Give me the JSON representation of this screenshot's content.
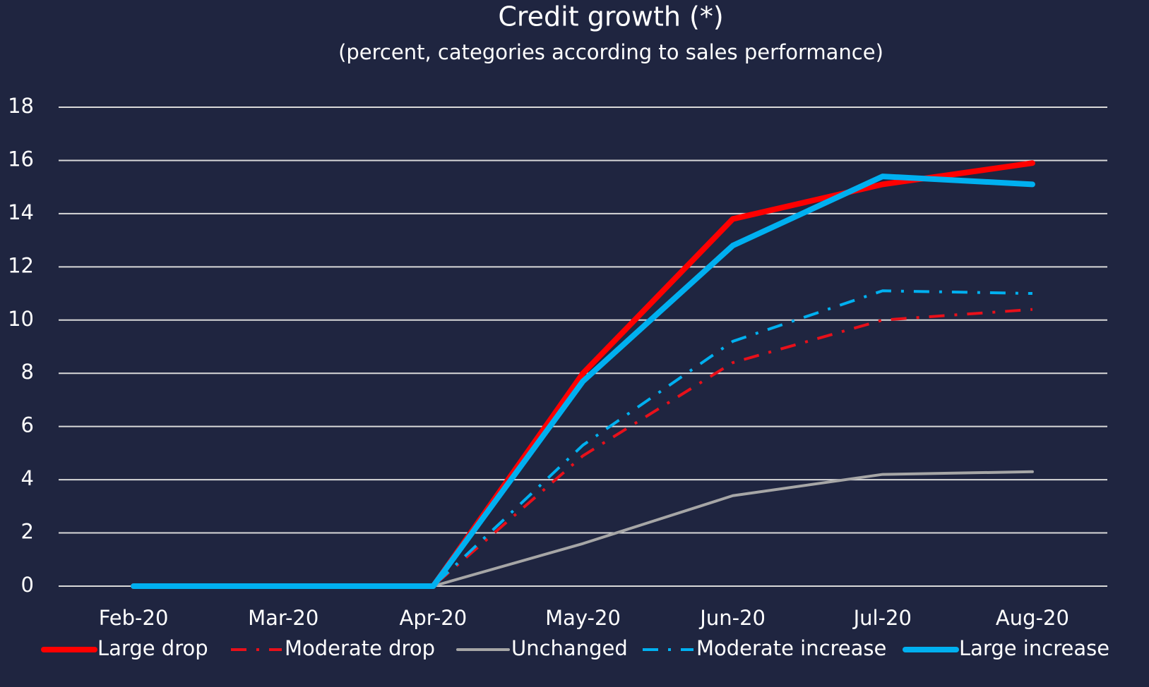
{
  "chart_data": {
    "type": "line",
    "title": "Credit growth (*)",
    "subtitle": "(percent, categories according to sales performance)",
    "categories": [
      "Feb-20",
      "Mar-20",
      "Apr-20",
      "May-20",
      "Jun-20",
      "Jul-20",
      "Aug-20"
    ],
    "series": [
      {
        "name": "Large drop",
        "color": "#ff0000",
        "style": "solid",
        "line_width": 8,
        "values": [
          0,
          0,
          0,
          8.0,
          13.8,
          15.1,
          15.9
        ]
      },
      {
        "name": "Moderate drop",
        "color": "#e8101a",
        "style": "dashdot",
        "line_width": 4,
        "values": [
          0,
          0,
          0,
          4.9,
          8.4,
          10.0,
          10.4
        ]
      },
      {
        "name": "Unchanged",
        "color": "#a6a6a6",
        "style": "solid",
        "line_width": 4,
        "values": [
          0,
          0,
          0,
          1.6,
          3.4,
          4.2,
          4.3
        ]
      },
      {
        "name": "Moderate increase",
        "color": "#00b0f0",
        "style": "dashdot",
        "line_width": 4,
        "values": [
          0,
          0,
          0,
          5.3,
          9.2,
          11.1,
          11.0
        ]
      },
      {
        "name": "Large increase",
        "color": "#00b0f0",
        "style": "solid",
        "line_width": 8,
        "values": [
          0,
          0,
          0,
          7.7,
          12.8,
          15.4,
          15.1
        ]
      }
    ],
    "ylim": [
      0,
      18
    ],
    "yticks": [
      0,
      2,
      4,
      6,
      8,
      10,
      12,
      14,
      16,
      18
    ],
    "grid": true,
    "legend": "bottom"
  }
}
